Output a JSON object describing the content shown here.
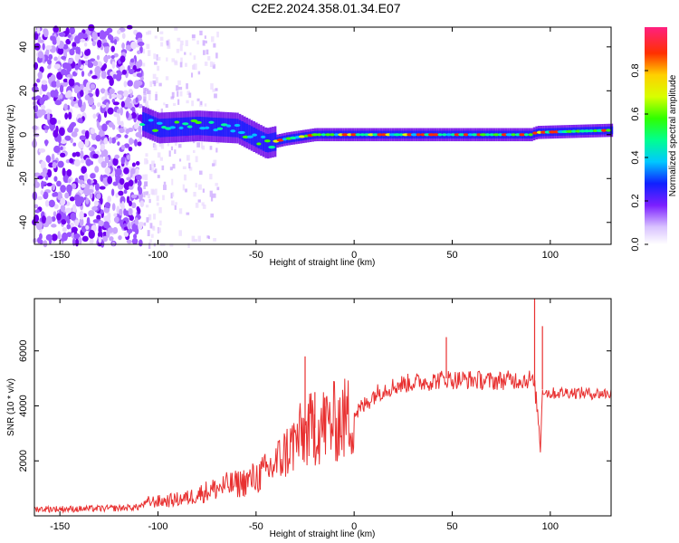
{
  "title": "C2E2.2024.358.01.34.E07",
  "colors": {
    "spec_main": "#6a00e8",
    "snr_line": "#e83030",
    "frame": "#000000"
  },
  "chart_data": [
    {
      "type": "heatmap",
      "title": "C2E2.2024.358.01.34.E07",
      "xlabel": "Height of straight line (km)",
      "ylabel": "Frequency (Hz)",
      "xlim": [
        -163,
        131
      ],
      "ylim": [
        -50,
        49
      ],
      "xticks": [
        -150,
        -100,
        -50,
        0,
        50,
        100
      ],
      "yticks": [
        -40,
        -20,
        0,
        20,
        40
      ],
      "colorbar": {
        "label": "Normalized spectral amplitude",
        "range": [
          0.0,
          1.0
        ],
        "ticks": [
          0.0,
          0.2,
          0.4,
          0.6,
          0.8
        ],
        "colormap": "rainbow (white-violet-blue-cyan-green-yellow-red-magenta)"
      },
      "features": {
        "noise_region_x": [
          -163,
          -108
        ],
        "sparse_noise_region_x": [
          -108,
          -70
        ],
        "ridge_start_x": -108,
        "ridge_center_freq": [
          {
            "x": -108,
            "f": 6
          },
          {
            "x": -100,
            "f": 3
          },
          {
            "x": -80,
            "f": 4
          },
          {
            "x": -60,
            "f": 3
          },
          {
            "x": -45,
            "f": -4
          },
          {
            "x": -35,
            "f": -2
          },
          {
            "x": -20,
            "f": 0
          },
          {
            "x": 0,
            "f": 0
          },
          {
            "x": 50,
            "f": 0
          },
          {
            "x": 90,
            "f": 0
          },
          {
            "x": 93,
            "f": 1
          },
          {
            "x": 131,
            "f": 2
          }
        ]
      }
    },
    {
      "type": "line",
      "xlabel": "Height of straight line (km)",
      "ylabel": "SNR (10 * v/v)",
      "xlim": [
        -163,
        131
      ],
      "ylim": [
        0,
        7900
      ],
      "xticks": [
        -150,
        -100,
        -50,
        0,
        50,
        100
      ],
      "yticks": [
        2000,
        4000,
        6000
      ],
      "series": [
        {
          "color": "#e83030",
          "x": [
            -163,
            -140,
            -120,
            -110,
            -105,
            -95,
            -85,
            -75,
            -70,
            -65,
            -60,
            -55,
            -50,
            -45,
            -40,
            -35,
            -30,
            -25,
            -20,
            -15,
            -10,
            -5,
            0,
            5,
            10,
            15,
            20,
            25,
            30,
            40,
            47,
            50,
            60,
            70,
            80,
            88,
            90,
            92,
            93,
            94,
            95,
            96,
            98,
            100,
            110,
            120,
            131
          ],
          "y": [
            250,
            250,
            280,
            320,
            500,
            550,
            650,
            900,
            1000,
            1100,
            1150,
            1250,
            1400,
            1600,
            1900,
            2300,
            2700,
            3000,
            3200,
            3300,
            3400,
            3500,
            3700,
            4000,
            4400,
            4600,
            4700,
            4800,
            4850,
            4900,
            5000,
            4950,
            4950,
            4900,
            4950,
            4950,
            5000,
            4700,
            4100,
            3400,
            2400,
            4600,
            4500,
            4450,
            4500,
            4450,
            4450
          ],
          "spikes": [
            {
              "x": -25,
              "y": 5800
            },
            {
              "x": -20,
              "y": 4500
            },
            {
              "x": -15,
              "y": 4300
            },
            {
              "x": 47,
              "y": 6500
            },
            {
              "x": 92,
              "y": 7900
            },
            {
              "x": 96,
              "y": 6900
            }
          ]
        }
      ]
    }
  ]
}
